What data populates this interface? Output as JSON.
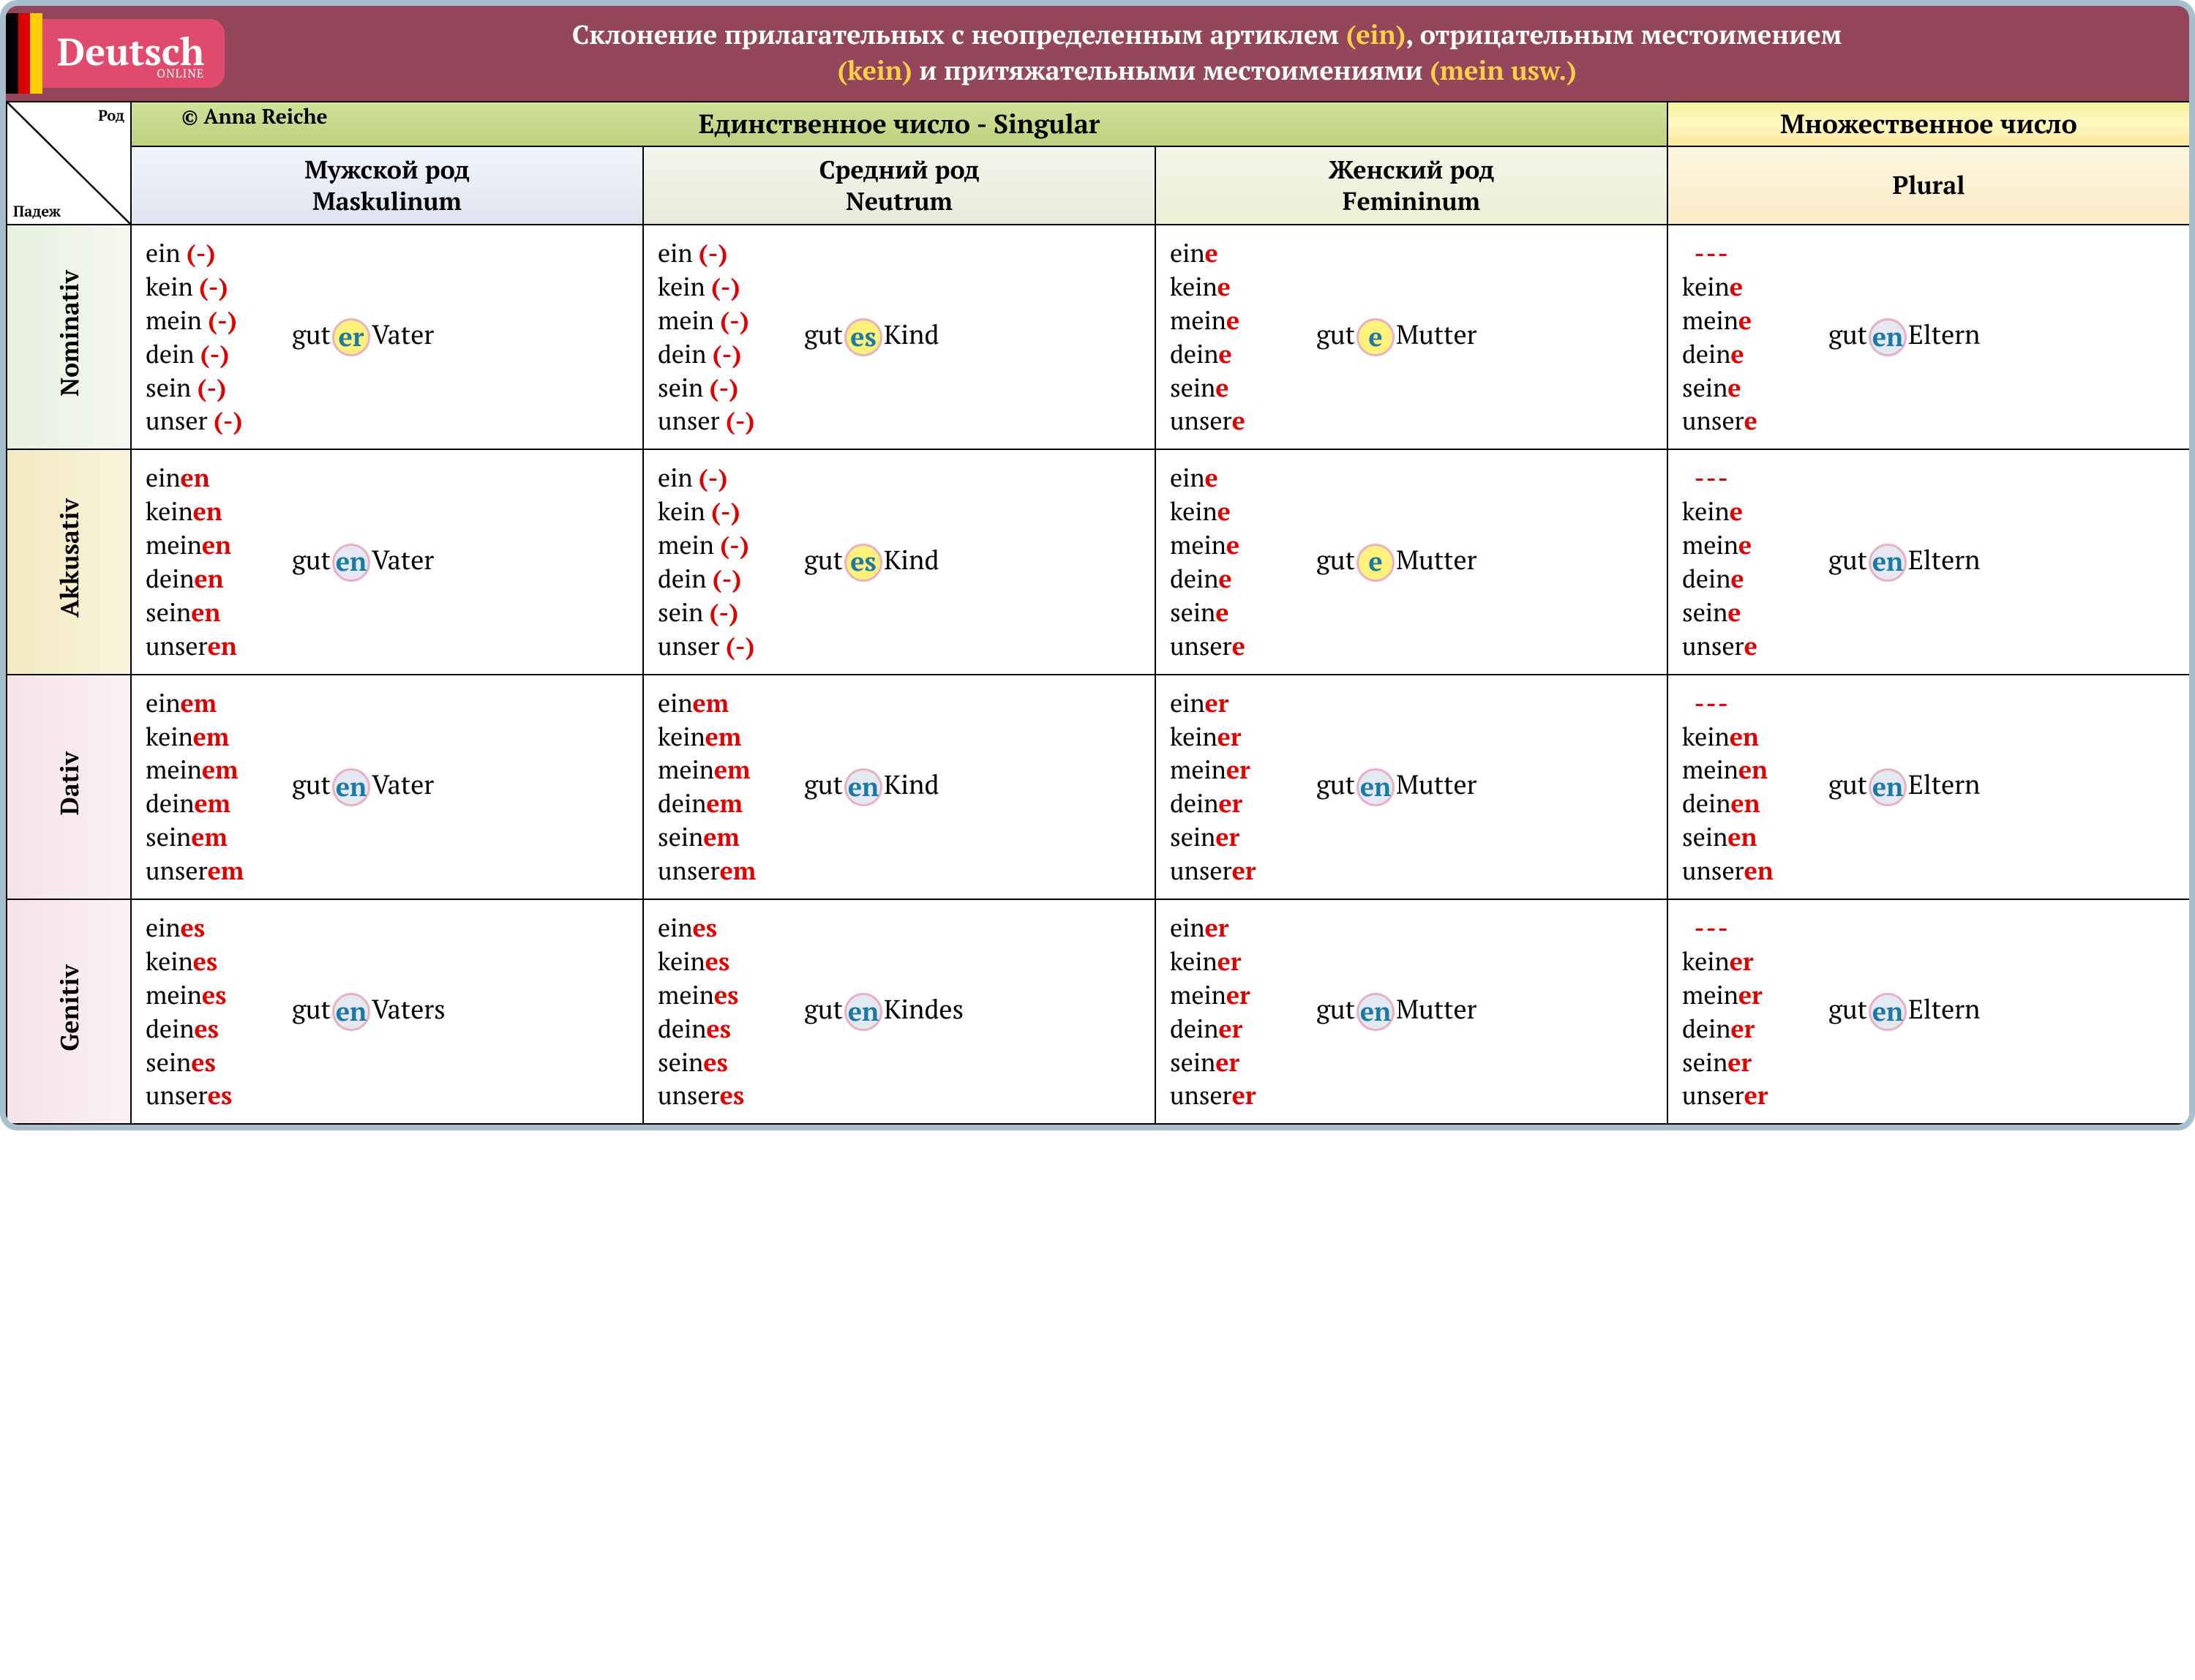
{
  "brand": "Deutsch",
  "brand_sub": "ONLINE",
  "title_pre": "Склонение прилагательных с неопределенным артиклем ",
  "title_ein": "(ein)",
  "title_mid": ", отрицательным местоимением ",
  "title_kein": "(kein)",
  "title_mid2": " и притяжательными местоимениями ",
  "title_mein": "(mein usw.)",
  "copyright": "© Anna Reiche",
  "hdr_singular": "Единственное число    -    Singular",
  "hdr_plural": "Множественное число",
  "diag_top": "Род",
  "diag_bot": "Падеж",
  "genders": {
    "m": {
      "ru": "Мужской род",
      "de": "Maskulinum"
    },
    "n": {
      "ru": "Средний род",
      "de": "Neutrum"
    },
    "f": {
      "ru": "Женский род",
      "de": "Femininum"
    },
    "p": {
      "ru": "",
      "de": "Plural"
    }
  },
  "cases": [
    "Nominativ",
    "Akkusativ",
    "Dativ",
    "Genitiv"
  ],
  "articles_base": [
    "ein",
    "kein",
    "mein",
    "dein",
    "sein",
    "unser"
  ],
  "articles_base_noein": [
    "kein",
    "mein",
    "dein",
    "sein",
    "unser"
  ],
  "nouns": {
    "m": "Vater",
    "n": "Kind",
    "f": "Mutter",
    "p": "Eltern"
  },
  "nouns_gen": {
    "m": "Vaters",
    "n": "Kindes",
    "f": "Mutter",
    "p": "Eltern"
  },
  "grid": {
    "Nominativ": {
      "m": {
        "art_suffix": "(-)",
        "adj_stem": "gut",
        "adj_end": "er",
        "ring": "yellow"
      },
      "n": {
        "art_suffix": "(-)",
        "adj_stem": "gut",
        "adj_end": "es",
        "ring": "yellow"
      },
      "f": {
        "art_suffix": "e",
        "adj_stem": "gut",
        "adj_end": "e",
        "ring": "yellow"
      },
      "p": {
        "art_suffix": "e",
        "adj_stem": "gut",
        "adj_end": "en",
        "ring": "blue",
        "no_ein": true
      }
    },
    "Akkusativ": {
      "m": {
        "art_suffix": "en",
        "adj_stem": "gut",
        "adj_end": "en",
        "ring": "blue"
      },
      "n": {
        "art_suffix": "(-)",
        "adj_stem": "gut",
        "adj_end": "es",
        "ring": "yellow"
      },
      "f": {
        "art_suffix": "e",
        "adj_stem": "gut",
        "adj_end": "e",
        "ring": "yellow"
      },
      "p": {
        "art_suffix": "e",
        "adj_stem": "gut",
        "adj_end": "en",
        "ring": "blue",
        "no_ein": true
      }
    },
    "Dativ": {
      "m": {
        "art_suffix": "em",
        "adj_stem": "gut",
        "adj_end": "en",
        "ring": "blue"
      },
      "n": {
        "art_suffix": "em",
        "adj_stem": "gut",
        "adj_end": "en",
        "ring": "blue"
      },
      "f": {
        "art_suffix": "er",
        "adj_stem": "gut",
        "adj_end": "en",
        "ring": "blue"
      },
      "p": {
        "art_suffix": "en",
        "adj_stem": "gut",
        "adj_end": "en",
        "ring": "blue",
        "no_ein": true
      }
    },
    "Genitiv": {
      "m": {
        "art_suffix": "es",
        "adj_stem": "gut",
        "adj_end": "en",
        "ring": "blue"
      },
      "n": {
        "art_suffix": "es",
        "adj_stem": "gut",
        "adj_end": "en",
        "ring": "blue"
      },
      "f": {
        "art_suffix": "er",
        "adj_stem": "gut",
        "adj_end": "en",
        "ring": "blue"
      },
      "p": {
        "art_suffix": "er",
        "adj_stem": "gut",
        "adj_end": "en",
        "ring": "blue",
        "no_ein": true
      }
    }
  },
  "colors": {
    "banner_bg": "#94465a",
    "brand_bg": "#e04a6d",
    "accent_red": "#e10000",
    "ring_yellow_bg": "#fff17a",
    "ring_blue_bg": "#e4e8f2",
    "ring_border": "#e8b0c4",
    "ring_text": "#1a7aa3"
  }
}
